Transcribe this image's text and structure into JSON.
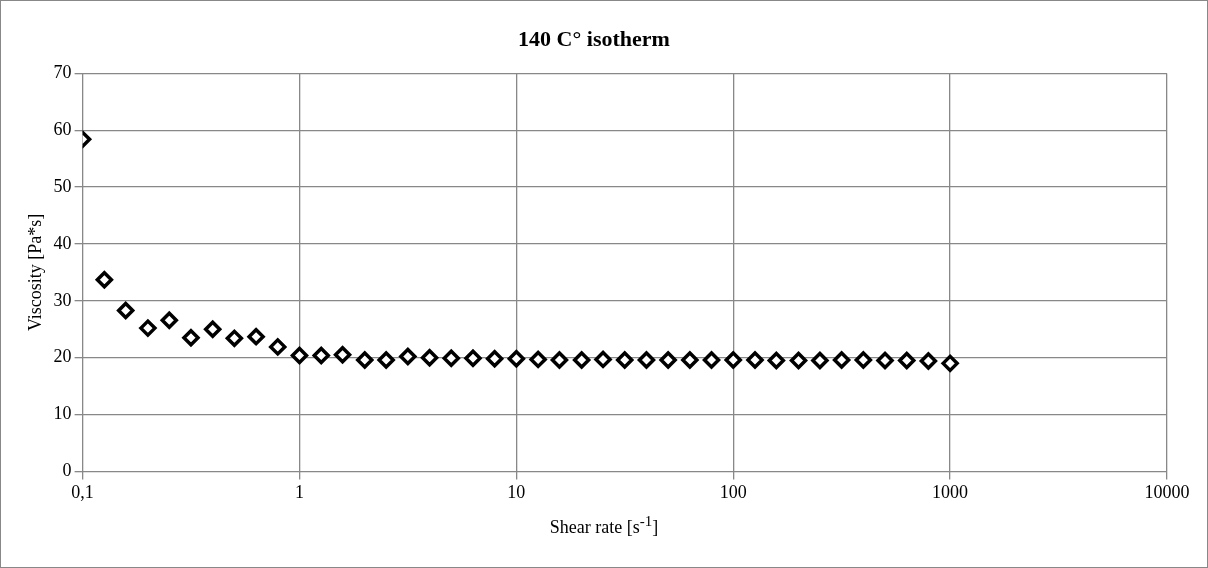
{
  "chart_data": {
    "type": "scatter",
    "title": "140 C° isotherm",
    "xlabel": "Shear rate [s$^{-1}$]",
    "ylabel": "Viscosity [Pa*s]",
    "log": "x",
    "grid": true,
    "legend": false,
    "marker": "diamond",
    "xlim": [
      0.1,
      10000
    ],
    "xticks": [
      {
        "value": 0.1,
        "label": "0,1"
      },
      1,
      10,
      100,
      1000,
      10000
    ],
    "ylim": [
      0,
      70
    ],
    "yticks": [
      0,
      10,
      20,
      30,
      40,
      50,
      60,
      70
    ],
    "series": [
      {
        "color": "#000000",
        "x": [
          0.1,
          0.126,
          0.158,
          0.2,
          0.251,
          0.316,
          0.398,
          0.501,
          0.631,
          0.794,
          1,
          1.26,
          1.58,
          2,
          2.51,
          3.16,
          3.98,
          5.01,
          6.31,
          7.94,
          10,
          12.6,
          15.8,
          20,
          25.1,
          31.6,
          39.8,
          50.1,
          63.1,
          79.4,
          100,
          126,
          158,
          200,
          251,
          316,
          398,
          501,
          631,
          794,
          1000
        ],
        "values": [
          58.4,
          33.7,
          28.3,
          25.2,
          26.6,
          23.5,
          25.0,
          23.4,
          23.7,
          21.9,
          20.4,
          20.4,
          20.5,
          19.6,
          19.6,
          20.2,
          20.0,
          19.9,
          19.9,
          19.8,
          19.8,
          19.7,
          19.6,
          19.6,
          19.7,
          19.6,
          19.6,
          19.6,
          19.6,
          19.6,
          19.6,
          19.6,
          19.5,
          19.5,
          19.5,
          19.6,
          19.6,
          19.5,
          19.5,
          19.4,
          19.0
        ]
      }
    ]
  }
}
